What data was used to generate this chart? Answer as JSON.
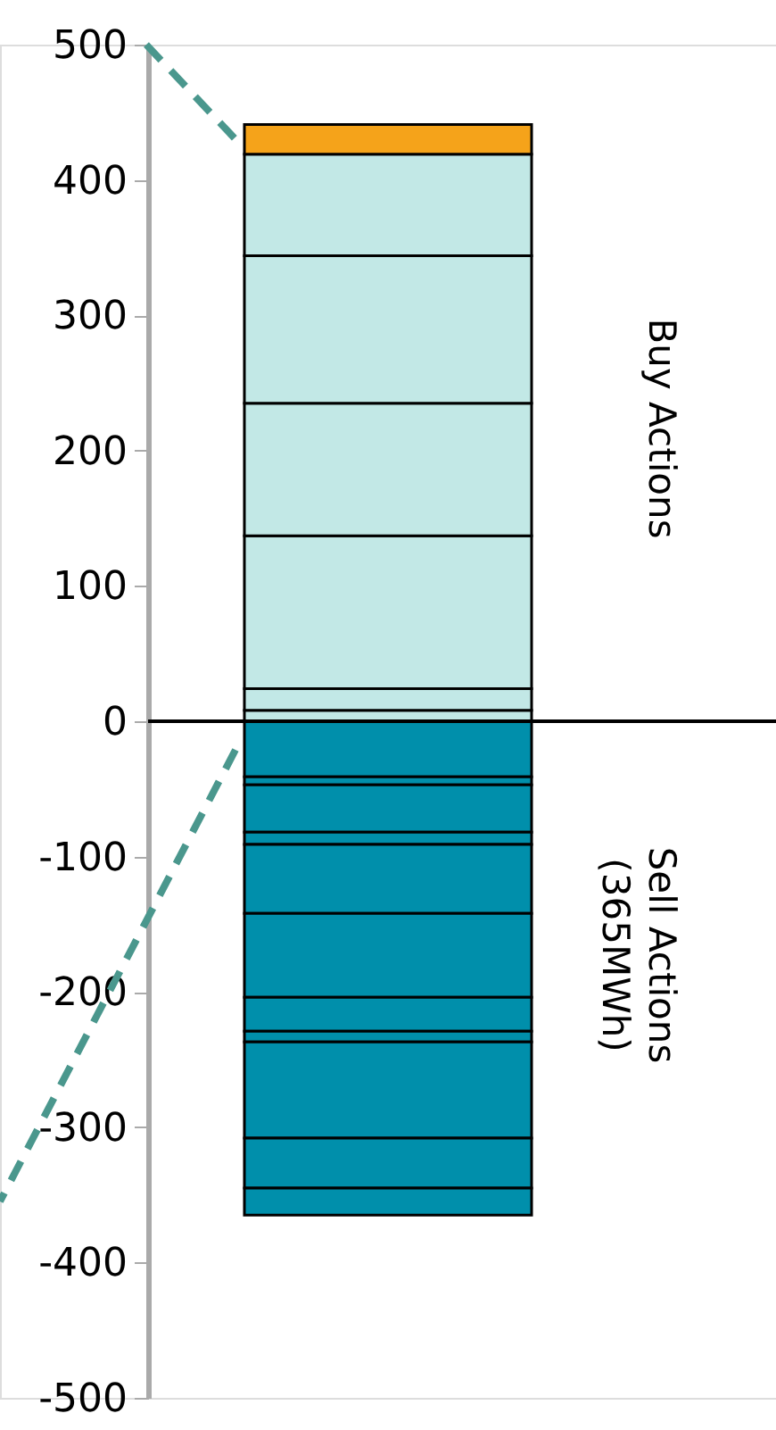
{
  "chart_data": {
    "type": "bar",
    "stacked": true,
    "categories": [
      null
    ],
    "ylim": [
      -500,
      500
    ],
    "yticks": [
      -500,
      -400,
      -300,
      -200,
      -100,
      0,
      100,
      200,
      300,
      400,
      500
    ],
    "tick_labels": "y",
    "grid": false,
    "series": [
      {
        "color": "#c2e8e6",
        "values": [
          8
        ]
      },
      {
        "color": "#c2e8e6",
        "values": [
          16
        ]
      },
      {
        "color": "#c2e8e6",
        "values": [
          113
        ]
      },
      {
        "color": "#c2e8e6",
        "values": [
          98
        ]
      },
      {
        "color": "#c2e8e6",
        "values": [
          109
        ]
      },
      {
        "color": "#c2e8e6",
        "values": [
          75
        ]
      },
      {
        "color": "#f5a31a",
        "values": [
          22
        ]
      },
      {
        "color": "#008fab",
        "values": [
          -41
        ]
      },
      {
        "color": "#008fab",
        "values": [
          -6
        ]
      },
      {
        "color": "#008fab",
        "values": [
          -35
        ]
      },
      {
        "color": "#008fab",
        "values": [
          -9
        ]
      },
      {
        "color": "#008fab",
        "values": [
          -51
        ]
      },
      {
        "color": "#008fab",
        "values": [
          -62
        ]
      },
      {
        "color": "#008fab",
        "values": [
          -25
        ]
      },
      {
        "color": "#008fab",
        "values": [
          -8
        ]
      },
      {
        "color": "#008fab",
        "values": [
          -71
        ]
      },
      {
        "color": "#008fab",
        "values": [
          -37
        ]
      },
      {
        "color": "#008fab",
        "values": [
          -20
        ]
      }
    ],
    "ref_lines": [
      {
        "axis": "y",
        "value": 0,
        "color": "#000000"
      }
    ],
    "annotations": [
      "Buy Actions",
      "Sell Actions\n(365MWh)"
    ]
  }
}
